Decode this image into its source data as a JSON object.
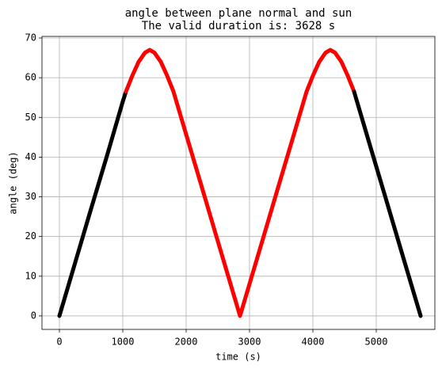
{
  "chart_data": {
    "type": "line",
    "title": "angle between plane normal and sun",
    "subtitle": "The valid duration is: 3628 s",
    "x_label": "time (s)",
    "y_label": "angle (deg)",
    "xlim": [
      -275,
      5925
    ],
    "ylim": [
      -3.4,
      70.4
    ],
    "xticks": [
      0,
      1000,
      2000,
      3000,
      4000,
      5000
    ],
    "yticks": [
      0,
      10,
      20,
      30,
      40,
      50,
      60,
      70
    ],
    "grid": true,
    "series": [
      {
        "color": "#000000",
        "x": [
          0,
          250,
          500,
          750,
          1000,
          1050
        ],
        "values": [
          0,
          13.5,
          27,
          40.3,
          54,
          56.5
        ]
      },
      {
        "color": "#ff0000",
        "x": [
          1050,
          1150,
          1250,
          1350,
          1425,
          1500,
          1600,
          1700,
          1800,
          2000,
          2250,
          2500,
          2850,
          3200,
          3450,
          3700,
          3900,
          4000,
          4100,
          4200,
          4275,
          4350,
          4450,
          4550,
          4650
        ],
        "values": [
          56.5,
          60.5,
          64,
          66.3,
          67,
          66.3,
          64,
          60.5,
          56.5,
          45.7,
          32.3,
          18.8,
          0,
          18.8,
          32.3,
          45.7,
          56.5,
          60.5,
          64,
          66.3,
          67,
          66.3,
          64,
          60.5,
          56.5
        ]
      },
      {
        "color": "#000000",
        "x": [
          4650,
          4900,
          5150,
          5400,
          5700
        ],
        "values": [
          56.5,
          43.0,
          29.6,
          16.1,
          0
        ]
      }
    ]
  }
}
